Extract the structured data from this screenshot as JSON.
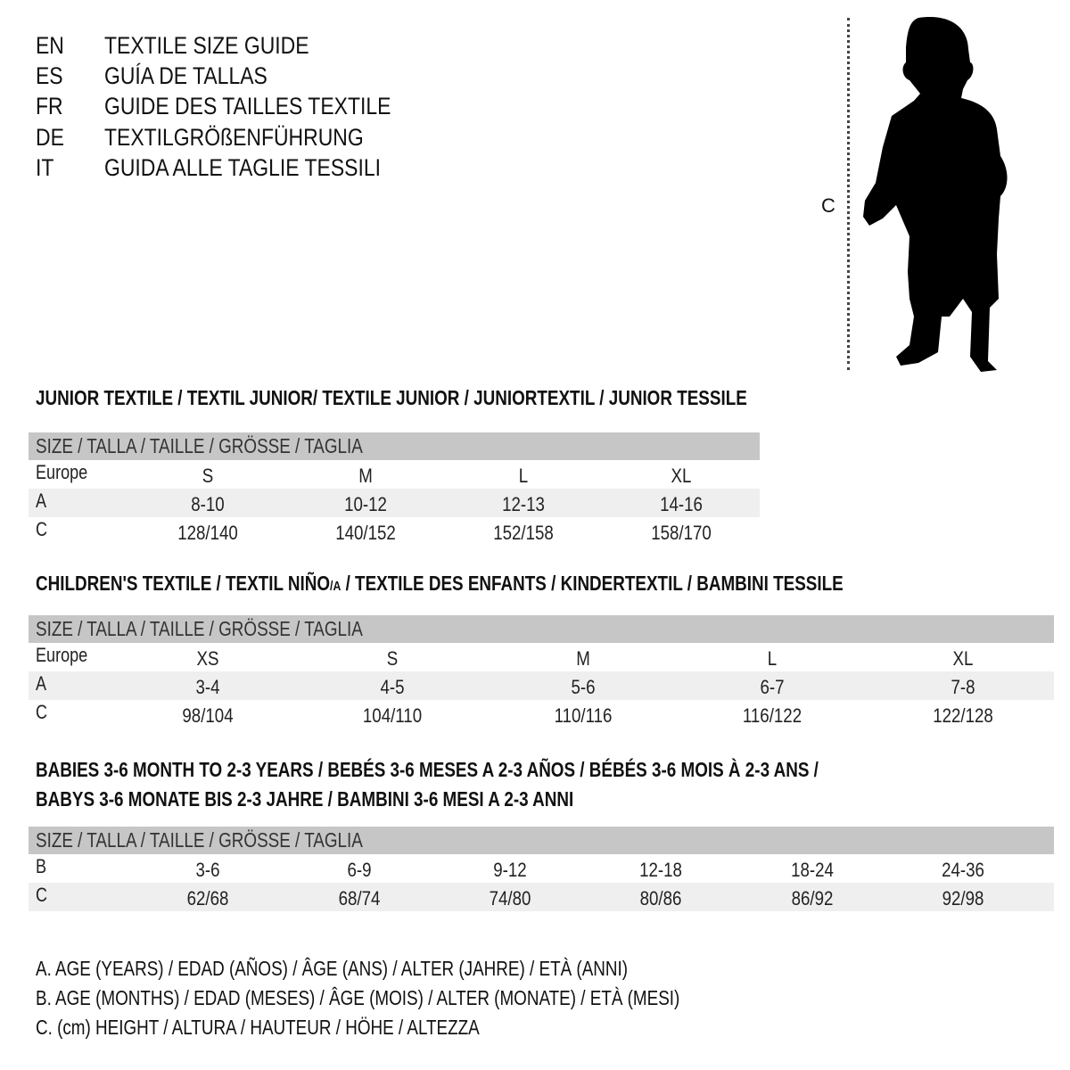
{
  "languages": [
    {
      "code": "EN",
      "title": "TEXTILE SIZE GUIDE"
    },
    {
      "code": "ES",
      "title": "GUÍA DE TALLAS"
    },
    {
      "code": "FR",
      "title": "GUIDE DES TAILLES TEXTILE"
    },
    {
      "code": "DE",
      "title": "TEXTILGRÖßENFÜHRUNG"
    },
    {
      "code": "IT",
      "title": "GUIDA ALLE TAGLIE TESSILI"
    }
  ],
  "figure": {
    "measure_label": "C"
  },
  "junior": {
    "heading": "JUNIOR TEXTILE / TEXTIL JUNIOR/ TEXTILE JUNIOR / JUNIORTEXTIL / JUNIOR TESSILE",
    "size_header": "SIZE / TALLA / TAILLE / GRÖSSE / TAGLIA",
    "rows": [
      {
        "label": "Europe",
        "values": [
          "S",
          "M",
          "L",
          "XL"
        ]
      },
      {
        "label": "A",
        "values": [
          "8-10",
          "10-12",
          "12-13",
          "14-16"
        ]
      },
      {
        "label": "C",
        "values": [
          "128/140",
          "140/152",
          "152/158",
          "158/170"
        ]
      }
    ]
  },
  "children": {
    "heading_a": "CHILDREN'S TEXTILE / TEXTIL NIÑO",
    "heading_sub": "/A",
    "heading_b": " / TEXTILE DES ENFANTS / KINDERTEXTIL / BAMBINI TESSILE",
    "size_header": "SIZE / TALLA / TAILLE / GRÖSSE / TAGLIA",
    "rows": [
      {
        "label": "Europe",
        "values": [
          "XS",
          "S",
          "M",
          "L",
          "XL"
        ]
      },
      {
        "label": "A",
        "values": [
          "3-4",
          "4-5",
          "5-6",
          "6-7",
          "7-8"
        ]
      },
      {
        "label": "C",
        "values": [
          "98/104",
          "104/110",
          "110/116",
          "116/122",
          "122/128"
        ]
      }
    ]
  },
  "babies": {
    "heading_line1": "BABIES 3-6 MONTH TO 2-3 YEARS / BEBÉS 3-6 MESES A 2-3 AÑOS / BÉBÉS 3-6 MOIS À 2-3 ANS /",
    "heading_line2": "BABYS 3-6 MONATE BIS 2-3 JAHRE / BAMBINI 3-6 MESI A 2-3 ANNI",
    "size_header": "SIZE / TALLA / TAILLE / GRÖSSE / TAGLIA",
    "rows": [
      {
        "label": "B",
        "values": [
          "3-6",
          "6-9",
          "9-12",
          "12-18",
          "18-24",
          "24-36"
        ]
      },
      {
        "label": "C",
        "values": [
          "62/68",
          "68/74",
          "74/80",
          "80/86",
          "86/92",
          "92/98"
        ]
      }
    ]
  },
  "legend": [
    "A. AGE (YEARS) / EDAD (AÑOS) / ÂGE (ANS) / ALTER (JAHRE) / ETÀ (ANNI)",
    "B. AGE (MONTHS) / EDAD (MESES) / ÂGE (MOIS) / ALTER (MONATE) / ETÀ (MESI)",
    "C. (cm) HEIGHT / ALTURA / HAUTEUR / HÖHE / ALTEZZA"
  ]
}
